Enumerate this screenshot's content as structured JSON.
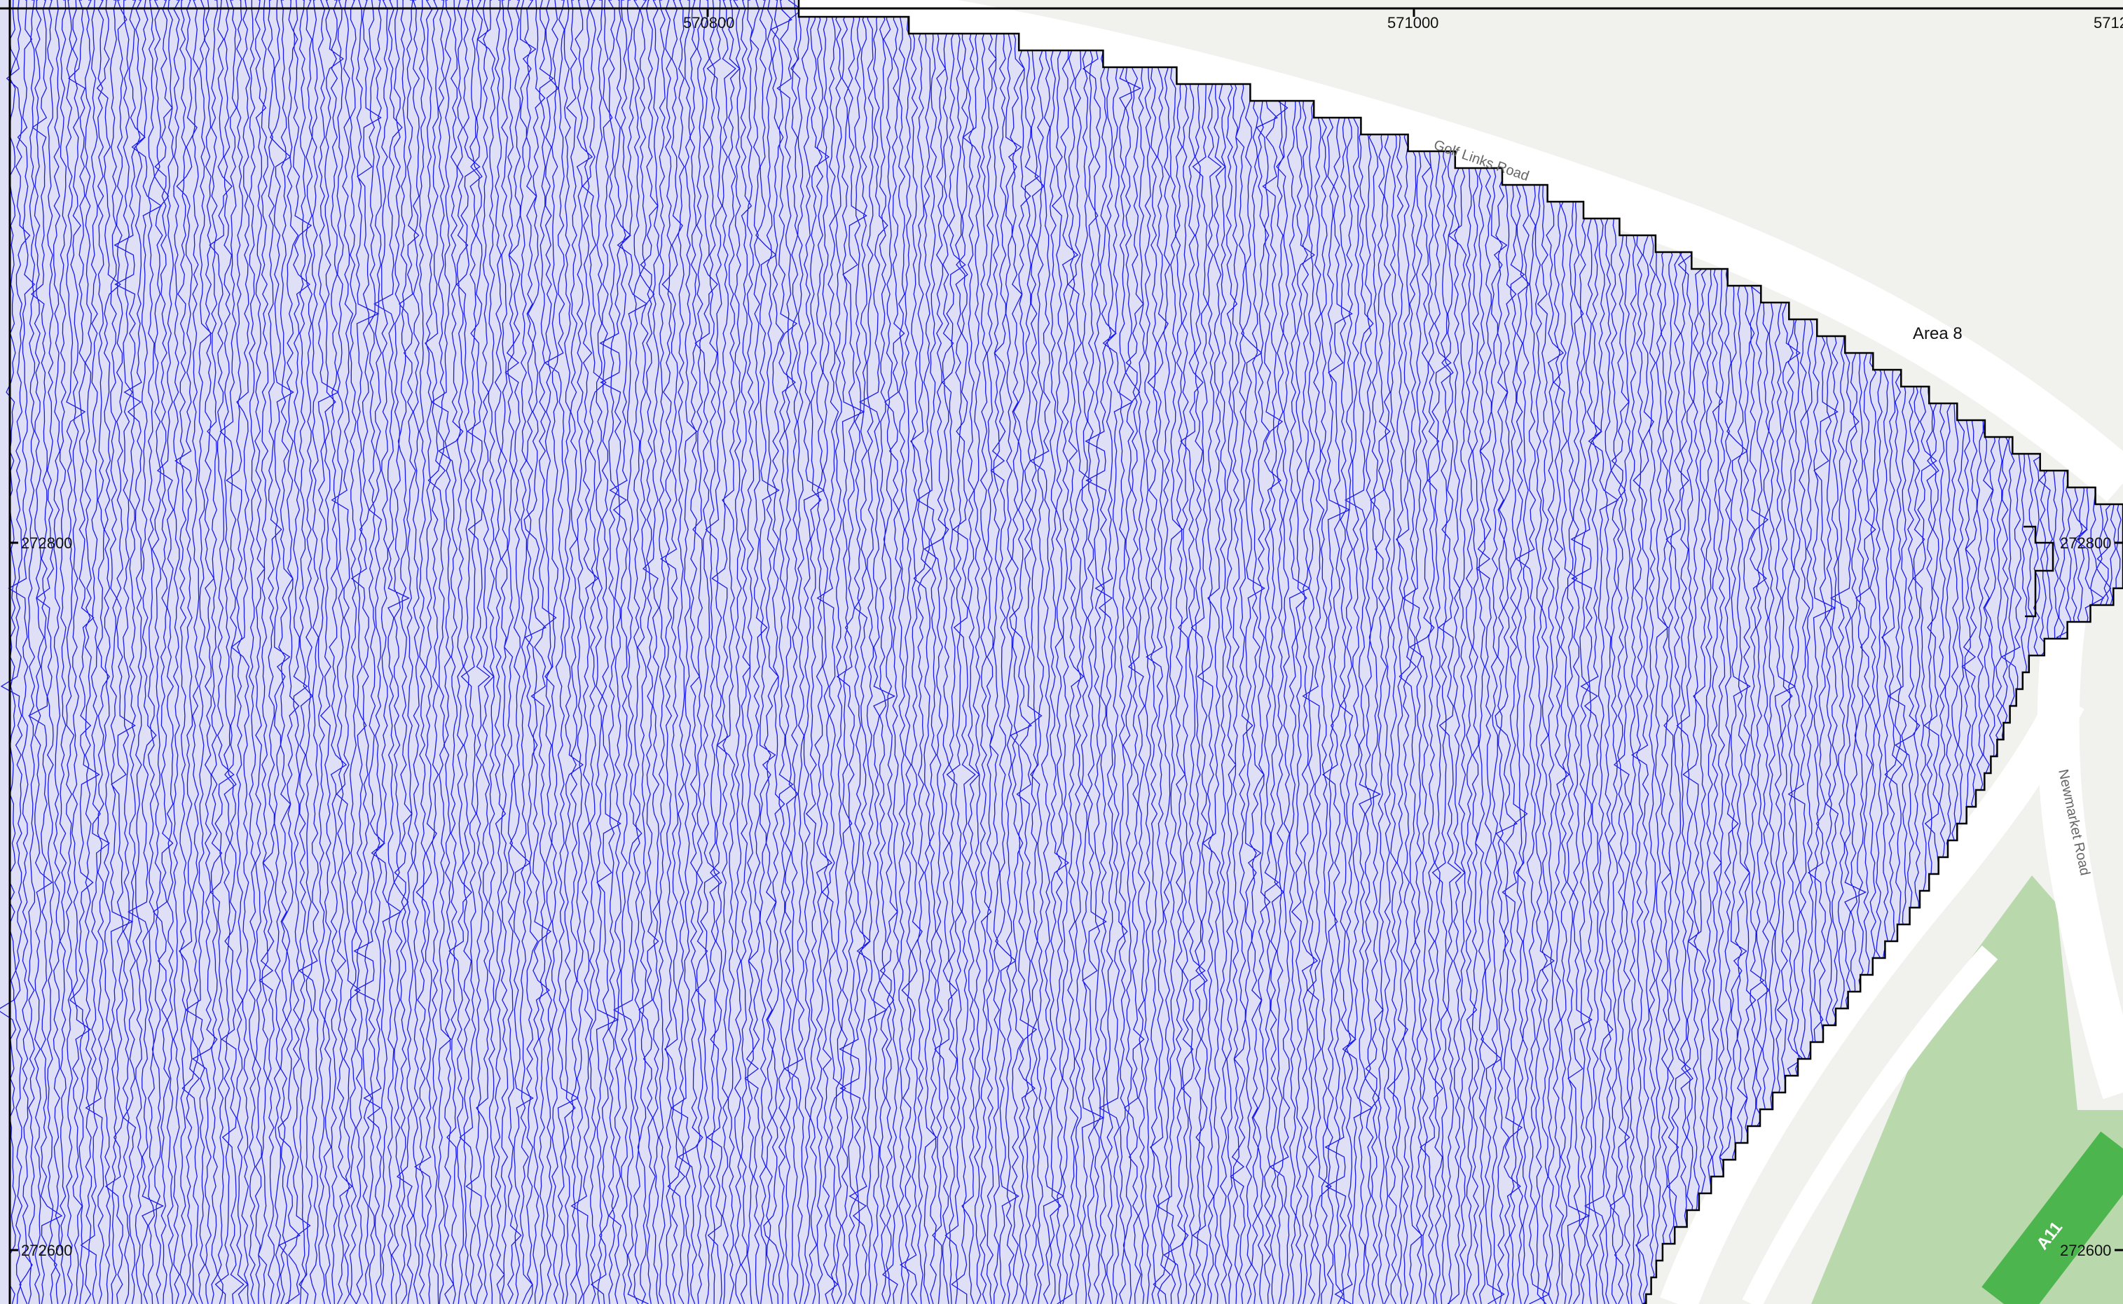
{
  "map": {
    "area_label": "Area 8",
    "roads": {
      "golf_links": "Golf Links Road",
      "newmarket": "Newmarket Road",
      "a11": "A11"
    },
    "grid": {
      "easting_labels": [
        "570800",
        "571000",
        "5712"
      ],
      "northing_labels": [
        "272800",
        "272600"
      ]
    },
    "colors": {
      "trace": "#1a1aee",
      "background": "#f1f2ee",
      "road": "#ffffff",
      "verge": "#e9ebe6",
      "green": "#b9d9ad",
      "a11_road": "#4db54d",
      "boundary": "#000000"
    }
  }
}
